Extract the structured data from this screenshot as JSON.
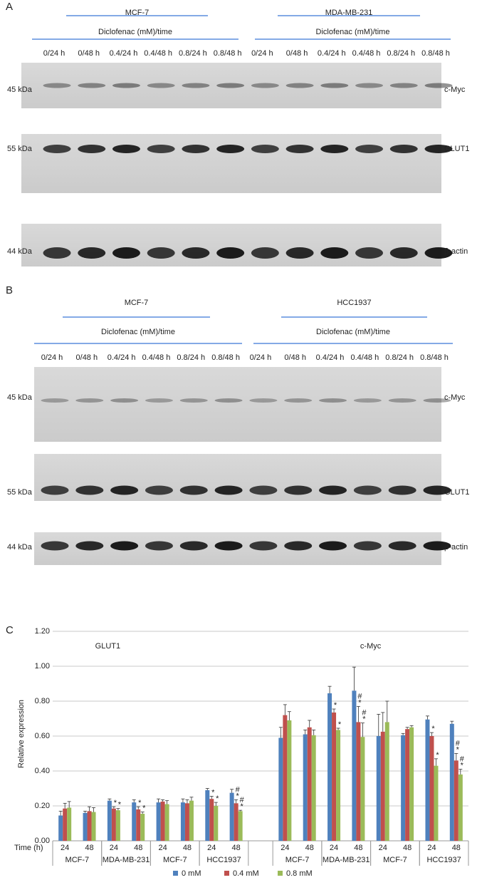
{
  "panels": [
    {
      "letter": "A",
      "cell_lines": [
        "MCF-7",
        "MDA-MB-231"
      ],
      "treatment": "Diclofenac (mM)/time",
      "lanes": [
        "0/24 h",
        "0/48 h",
        "0.4/24 h",
        "0.4/48 h",
        "0.8/24 h",
        "0.8/48 h",
        "0/24 h",
        "0/48 h",
        "0.4/24 h",
        "0.4/48 h",
        "0.8/24 h",
        "0.8/48 h"
      ],
      "blots": [
        {
          "marker": "45 kDa",
          "protein": "c-Myc"
        },
        {
          "marker": "55 kDa",
          "protein": "GLUT1"
        },
        {
          "marker": "44 kDa",
          "protein": "β-actin"
        }
      ]
    },
    {
      "letter": "B",
      "cell_lines": [
        "MCF-7",
        "HCC1937"
      ],
      "treatment": "Diclofenac (mM)/time",
      "lanes": [
        "0/24 h",
        "0/48 h",
        "0.4/24 h",
        "0.4/48 h",
        "0.8/24 h",
        "0.8/48 h",
        "0/24 h",
        "0/48 h",
        "0.4/24 h",
        "0.4/48 h",
        "0.8/24 h",
        "0.8/48 h"
      ],
      "blots": [
        {
          "marker": "45 kDa",
          "protein": "c-Myc"
        },
        {
          "marker": "55 kDa",
          "protein": "GLUT1"
        },
        {
          "marker": "44 kDa",
          "protein": "β-actin"
        }
      ]
    }
  ],
  "chart_data": {
    "type": "bar",
    "panel_letter": "C",
    "sections": [
      "GLUT1",
      "c-Myc"
    ],
    "x_label": "Time (h)",
    "y_label": "Relative expression",
    "categories": [
      "24",
      "48",
      "24",
      "48",
      "24",
      "48",
      "24",
      "48",
      "24",
      "48",
      "24",
      "48",
      "24",
      "48",
      "24",
      "48"
    ],
    "cell_lines": [
      "MCF-7",
      "MDA-MB-231",
      "MCF-7",
      "HCC1937",
      "MCF-7",
      "MDA-MB-231",
      "MCF-7",
      "HCC1937"
    ],
    "ylim": [
      0,
      1.2
    ],
    "yticks": [
      {
        "value": 0,
        "label": "0.00"
      },
      {
        "value": 0.2,
        "label": "0.20"
      },
      {
        "value": 0.4,
        "label": "0.40"
      },
      {
        "value": 0.6,
        "label": "0.60"
      },
      {
        "value": 0.8,
        "label": "0.80"
      },
      {
        "value": 1.0,
        "label": "1.00"
      },
      {
        "value": 1.2,
        "label": "1.20"
      }
    ],
    "grid": true,
    "legend": "bottom",
    "series": [
      {
        "name": "0 mM",
        "color": "#4f81bd",
        "values": [
          0.145,
          0.16,
          0.23,
          0.22,
          0.22,
          0.22,
          0.29,
          0.275,
          0.59,
          0.61,
          0.845,
          0.86,
          0.6,
          0.605,
          0.695,
          0.67
        ],
        "errors": [
          0.025,
          0.01,
          0.01,
          0.015,
          0.02,
          0.02,
          0.01,
          0.02,
          0.06,
          0.025,
          0.04,
          0.135,
          0.125,
          0.01,
          0.02,
          0.015
        ],
        "markers": [
          null,
          null,
          null,
          null,
          null,
          null,
          null,
          null,
          null,
          null,
          null,
          null,
          null,
          null,
          null,
          null
        ]
      },
      {
        "name": "0.4 mM",
        "color": "#c0504d",
        "values": [
          0.185,
          0.17,
          0.185,
          0.18,
          0.225,
          0.215,
          0.24,
          0.215,
          0.72,
          0.65,
          0.735,
          0.68,
          0.625,
          0.64,
          0.6,
          0.46
        ],
        "errors": [
          0.03,
          0.025,
          0.01,
          0.015,
          0.01,
          0.02,
          0.015,
          0.02,
          0.06,
          0.04,
          0.02,
          0.09,
          0.11,
          0.01,
          0.02,
          0.04
        ],
        "markers": [
          null,
          null,
          [
            "*"
          ],
          [
            "*"
          ],
          null,
          null,
          [
            "*"
          ],
          [
            "#",
            "*"
          ],
          null,
          null,
          [
            "*"
          ],
          [
            "#",
            "*"
          ],
          null,
          null,
          [
            "*"
          ],
          [
            "#",
            "*"
          ]
        ]
      },
      {
        "name": "0.8 mM",
        "color": "#9bbb59",
        "values": [
          0.19,
          0.165,
          0.175,
          0.155,
          0.21,
          0.23,
          0.2,
          0.17,
          0.69,
          0.605,
          0.635,
          0.595,
          0.68,
          0.65,
          0.43,
          0.38
        ],
        "errors": [
          0.035,
          0.025,
          0.01,
          0.01,
          0.02,
          0.02,
          0.02,
          0.005,
          0.05,
          0.03,
          0.01,
          0.08,
          0.12,
          0.01,
          0.04,
          0.03
        ],
        "markers": [
          null,
          null,
          [
            "*"
          ],
          [
            "*"
          ],
          null,
          null,
          [
            "*"
          ],
          [
            "#",
            "*"
          ],
          null,
          null,
          [
            "*"
          ],
          [
            "#",
            "*"
          ],
          null,
          null,
          [
            "*"
          ],
          [
            "#",
            "*"
          ]
        ]
      }
    ]
  }
}
